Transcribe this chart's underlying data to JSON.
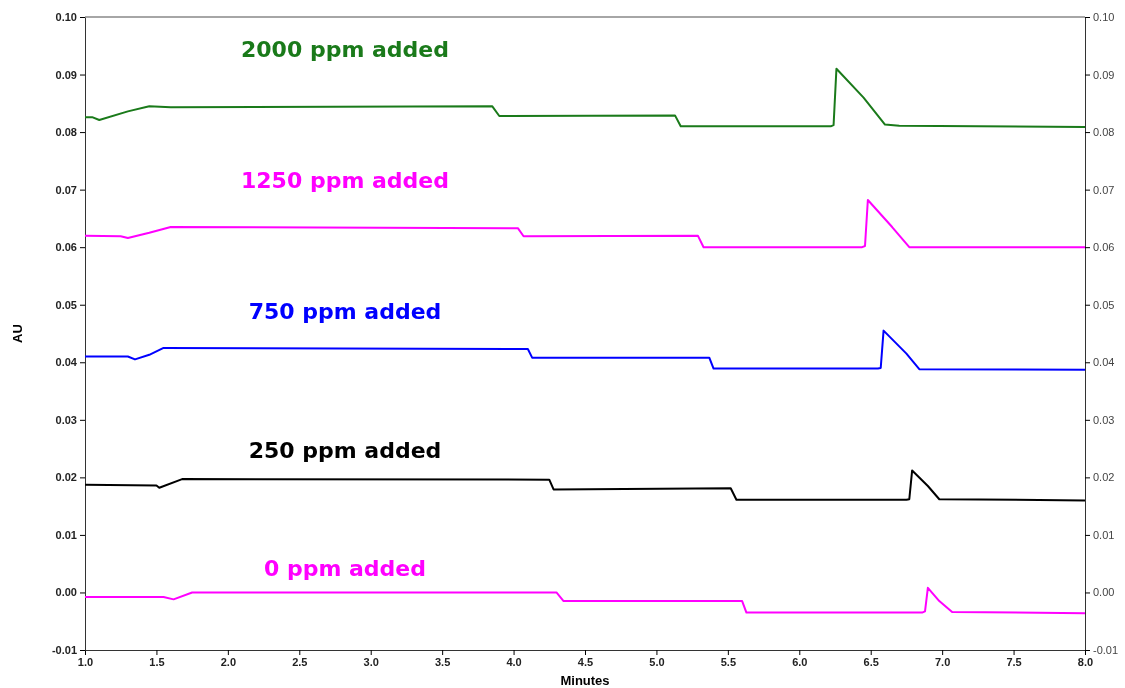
{
  "chart_data": {
    "type": "line",
    "xlabel": "Minutes",
    "ylabel": "AU",
    "xlim": [
      1.0,
      8.0
    ],
    "ylim": [
      -0.01,
      0.1
    ],
    "y2lim": [
      -0.01,
      0.1
    ],
    "xticks": [
      {
        "value": 1,
        "label": "1.0"
      },
      1.5,
      {
        "value": 2,
        "label": "2.0"
      },
      2.5,
      {
        "value": 3,
        "label": "3.0"
      },
      3.5,
      {
        "value": 4,
        "label": "4.0"
      },
      4.5,
      {
        "value": 5,
        "label": "5.0"
      },
      5.5,
      {
        "value": 6,
        "label": "6.0"
      },
      6.5,
      {
        "value": 7,
        "label": "7.0"
      },
      7.5,
      {
        "value": 8,
        "label": "8.0"
      }
    ],
    "yticks": [
      {
        "value": -0.01,
        "label": "-0.01"
      },
      {
        "value": 0,
        "label": "0.00"
      },
      {
        "value": 0.01,
        "label": "0.01"
      },
      {
        "value": 0.02,
        "label": "0.02"
      },
      {
        "value": 0.03,
        "label": "0.03"
      },
      {
        "value": 0.04,
        "label": "0.04"
      },
      {
        "value": 0.05,
        "label": "0.05"
      },
      {
        "value": 0.06,
        "label": "0.06"
      },
      {
        "value": 0.07,
        "label": "0.07"
      },
      {
        "value": 0.08,
        "label": "0.08"
      },
      {
        "value": 0.09,
        "label": "0.09"
      },
      {
        "value": 0.1,
        "label": "0.10"
      }
    ],
    "y2ticks": [
      {
        "value": -0.01,
        "label": "-0.01"
      },
      {
        "value": 0,
        "label": "0.00"
      },
      {
        "value": 0.01,
        "label": "0.01"
      },
      {
        "value": 0.02,
        "label": "0.02"
      },
      {
        "value": 0.03,
        "label": "0.03"
      },
      {
        "value": 0.04,
        "label": "0.04"
      },
      {
        "value": 0.05,
        "label": "0.05"
      },
      {
        "value": 0.06,
        "label": "0.06"
      },
      {
        "value": 0.07,
        "label": "0.07"
      },
      {
        "value": 0.08,
        "label": "0.08"
      },
      {
        "value": 0.09,
        "label": "0.09"
      },
      {
        "value": 0.1,
        "label": "0.10"
      }
    ],
    "legend": false,
    "marker": "none",
    "line_style": "solid",
    "series": [
      {
        "name": "2000 ppm added",
        "color": "#1a7a1a",
        "x": [
          1.0,
          1.05,
          1.1,
          1.3,
          1.45,
          1.6,
          3.85,
          3.9,
          5.13,
          5.17,
          6.22,
          6.24,
          6.26,
          6.45,
          6.6,
          6.7,
          8.0
        ],
        "values": [
          0.0826,
          0.0826,
          0.0821,
          0.0836,
          0.0845,
          0.0843,
          0.0845,
          0.0828,
          0.0829,
          0.081,
          0.081,
          0.0812,
          0.091,
          0.086,
          0.0813,
          0.0811,
          0.0809
        ]
      },
      {
        "name": "1250 ppm added",
        "color": "#ff00ff",
        "x": [
          1.0,
          1.25,
          1.3,
          1.45,
          1.6,
          4.03,
          4.07,
          5.29,
          5.33,
          6.44,
          6.46,
          6.48,
          6.65,
          6.77,
          8.0
        ],
        "values": [
          0.062,
          0.0619,
          0.0616,
          0.0625,
          0.0635,
          0.0633,
          0.0619,
          0.062,
          0.06,
          0.06,
          0.0602,
          0.0682,
          0.0635,
          0.06,
          0.06
        ]
      },
      {
        "name": "750 ppm added",
        "color": "#0000ff",
        "x": [
          1.0,
          1.3,
          1.35,
          1.45,
          1.55,
          4.1,
          4.13,
          5.37,
          5.4,
          6.55,
          6.57,
          6.59,
          6.75,
          6.84,
          8.0
        ],
        "values": [
          0.041,
          0.041,
          0.0405,
          0.0413,
          0.0425,
          0.0423,
          0.0408,
          0.0408,
          0.0389,
          0.0389,
          0.039,
          0.0455,
          0.0415,
          0.0388,
          0.0387
        ]
      },
      {
        "name": "250 ppm added",
        "color": "#000000",
        "x": [
          1.0,
          1.5,
          1.52,
          1.68,
          4.25,
          4.28,
          5.52,
          5.56,
          6.75,
          6.77,
          6.79,
          6.9,
          6.98,
          8.0
        ],
        "values": [
          0.0187,
          0.0186,
          0.0182,
          0.0197,
          0.0196,
          0.0179,
          0.0181,
          0.0161,
          0.0161,
          0.0162,
          0.0212,
          0.0185,
          0.0162,
          0.016
        ]
      },
      {
        "name": "0 ppm added",
        "color": "#ff00ff",
        "x": [
          1.0,
          1.55,
          1.62,
          1.75,
          4.3,
          4.35,
          5.6,
          5.63,
          6.86,
          6.88,
          6.9,
          6.98,
          7.07,
          8.0
        ],
        "values": [
          -0.0008,
          -0.0008,
          -0.0012,
          0.0,
          0.0,
          -0.0015,
          -0.0015,
          -0.0035,
          -0.0035,
          -0.0033,
          0.0008,
          -0.0015,
          -0.0034,
          -0.0036
        ]
      }
    ]
  }
}
